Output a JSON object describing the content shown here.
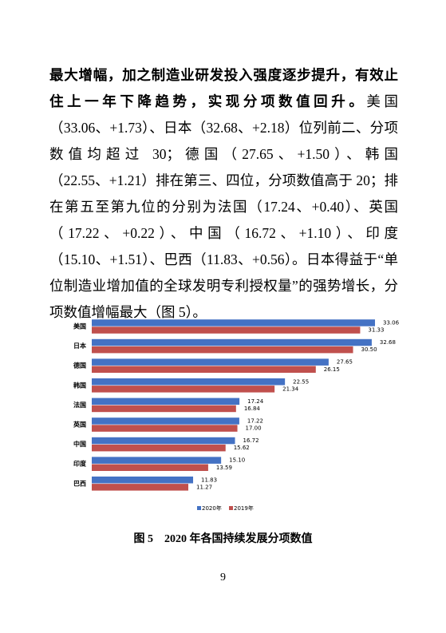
{
  "paragraph": {
    "bold": "最大增幅，加之制造业研发投入强度逐步提升，有效止住上一年下降趋势，实现分项数值回升。",
    "normal": "美国（33.06、+1.73）、日本（32.68、+2.18）位列前二、分项数值均超过 30；德国（27.65、+1.50）、韩国（22.55、+1.21）排在第三、四位，分项数值高于 20；排在第五至第九位的分别为法国（17.24、+0.40）、英国（17.22、+0.22）、中国（16.72、+1.10）、印度（15.10、+1.51）、巴西（11.83、+0.56）。日本得益于“单位制造业增加值的全球发明专利授权量”的强势增长，分项数值增幅最大（图 5）。"
  },
  "chart_data": {
    "type": "bar",
    "orientation": "horizontal",
    "categories": [
      "美国",
      "日本",
      "德国",
      "韩国",
      "法国",
      "英国",
      "中国",
      "印度",
      "巴西"
    ],
    "series": [
      {
        "name": "2020年",
        "color": "#4472c4",
        "values": [
          33.06,
          32.68,
          27.65,
          22.55,
          17.24,
          17.22,
          16.72,
          15.1,
          11.83
        ],
        "value_labels": [
          "33.06",
          "32.68",
          "27.65",
          "22.55",
          "17.24",
          "17.22",
          "16.72",
          "15.10",
          "11.83"
        ]
      },
      {
        "name": "2019年",
        "color": "#c0504d",
        "values": [
          31.33,
          30.5,
          26.15,
          21.34,
          16.84,
          17.0,
          15.62,
          13.59,
          11.27
        ],
        "value_labels": [
          "31.33",
          "30.50",
          "26.15",
          "21.34",
          "16.84",
          "17.00",
          "15.62",
          "13.59",
          "11.27"
        ]
      }
    ],
    "legend": "bottom"
  },
  "caption": "图 5　2020 年各国持续发展分项数值",
  "page_number": "9"
}
